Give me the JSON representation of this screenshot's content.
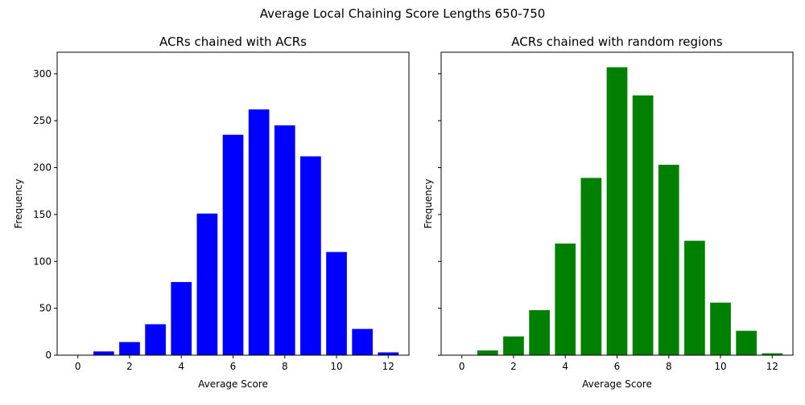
{
  "figure": {
    "title": "Average Local Chaining Score Lengths 650-750"
  },
  "chart_data": [
    {
      "type": "bar",
      "title": "ACRs chained with ACRs",
      "xlabel": "Average Score",
      "ylabel": "Frequency",
      "x": [
        0,
        1,
        2,
        3,
        4,
        5,
        6,
        7,
        8,
        9,
        10,
        11,
        12
      ],
      "values": [
        0,
        4,
        14,
        33,
        78,
        151,
        235,
        262,
        245,
        212,
        110,
        28,
        3
      ],
      "color": "#0000ff",
      "xlim": [
        -0.8,
        12.8
      ],
      "ylim": [
        0,
        323
      ],
      "xticks": [
        0,
        2,
        4,
        6,
        8,
        10,
        12
      ],
      "yticks": [
        0,
        50,
        100,
        150,
        200,
        250,
        300
      ],
      "grid": false
    },
    {
      "type": "bar",
      "title": "ACRs chained with random regions",
      "xlabel": "Average Score",
      "ylabel": "Frequency",
      "x": [
        0,
        1,
        2,
        3,
        4,
        5,
        6,
        7,
        8,
        9,
        10,
        11,
        12
      ],
      "values": [
        0,
        5,
        20,
        48,
        119,
        189,
        307,
        277,
        203,
        122,
        56,
        26,
        2
      ],
      "color": "#008000",
      "xlim": [
        -0.8,
        12.8
      ],
      "ylim": [
        0,
        323
      ],
      "xticks": [
        0,
        2,
        4,
        6,
        8,
        10,
        12
      ],
      "yticks": [
        0,
        50,
        100,
        150,
        200,
        250,
        300
      ],
      "sharey": true,
      "grid": false
    }
  ]
}
